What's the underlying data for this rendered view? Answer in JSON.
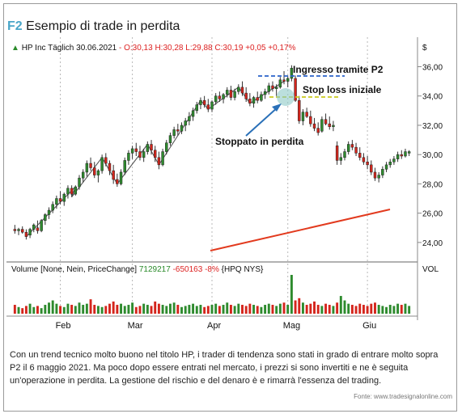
{
  "figure": {
    "label": "F2",
    "title": "Esempio di trade in perdita",
    "caption": "Con un trend tecnico molto buono nel titolo HP, i trader di tendenza sono stati in grado di entrare molto sopra P2 il 6 maggio 2021. Ma poco dopo essere entrati nel mercato, i prezzi si sono invertiti e ne è seguita un'operazione in perdita. La gestione del rischio e del denaro è e rimarrà l'essenza del trading.",
    "source": "Fonte: www.tradesignalonline.com"
  },
  "chart_data": {
    "type": "candlestick",
    "header": {
      "symbol": "HP Inc Täglich",
      "date": "30.06.2021",
      "ohlc": "- O:30,13 H:30,28 L:29,88 C:30,19 +0,05 +0,17%"
    },
    "price_axis": {
      "currency": "$",
      "ticks": [
        "36,00",
        "34,00",
        "32,00",
        "30,00",
        "28,00",
        "26,00",
        "24,00"
      ],
      "ylim": [
        23.0,
        36.8
      ]
    },
    "months": [
      "Feb",
      "Mar",
      "Apr",
      "Mag",
      "Giu"
    ],
    "annotations": {
      "entry": "Ingresso tramite P2",
      "entry_level": 35.0,
      "stop": "Stop loss iniziale",
      "stop_level": 33.6,
      "stopped": "Stoppato in perdita"
    },
    "candles": [
      [
        24.9,
        25.2,
        24.6,
        24.8
      ],
      [
        24.8,
        25.0,
        24.5,
        24.9
      ],
      [
        24.9,
        25.1,
        24.6,
        24.7
      ],
      [
        24.7,
        24.9,
        24.2,
        24.4
      ],
      [
        24.5,
        25.0,
        24.3,
        24.9
      ],
      [
        24.9,
        25.3,
        24.7,
        25.2
      ],
      [
        25.0,
        25.5,
        24.6,
        24.8
      ],
      [
        24.8,
        25.6,
        24.7,
        25.5
      ],
      [
        25.5,
        26.0,
        25.2,
        25.9
      ],
      [
        25.9,
        26.4,
        25.6,
        26.2
      ],
      [
        26.2,
        26.8,
        26.0,
        26.6
      ],
      [
        26.6,
        27.2,
        26.3,
        27.0
      ],
      [
        27.0,
        27.5,
        26.6,
        26.8
      ],
      [
        26.8,
        27.4,
        26.5,
        27.3
      ],
      [
        27.3,
        27.9,
        27.0,
        27.7
      ],
      [
        27.7,
        27.9,
        27.1,
        27.3
      ],
      [
        27.3,
        27.9,
        27.2,
        27.8
      ],
      [
        27.8,
        28.6,
        27.6,
        28.4
      ],
      [
        28.4,
        29.0,
        28.1,
        28.8
      ],
      [
        28.8,
        29.6,
        28.5,
        29.4
      ],
      [
        29.4,
        29.8,
        28.9,
        29.1
      ],
      [
        29.1,
        29.5,
        28.4,
        28.6
      ],
      [
        28.6,
        29.0,
        28.1,
        28.9
      ],
      [
        28.9,
        30.0,
        28.7,
        29.8
      ],
      [
        29.8,
        30.1,
        29.2,
        29.4
      ],
      [
        29.4,
        29.6,
        28.6,
        28.9
      ],
      [
        28.9,
        29.3,
        28.0,
        28.3
      ],
      [
        28.3,
        28.7,
        27.8,
        28.0
      ],
      [
        28.0,
        29.0,
        27.9,
        28.8
      ],
      [
        28.8,
        29.8,
        28.6,
        29.6
      ],
      [
        29.6,
        30.3,
        29.3,
        30.1
      ],
      [
        30.1,
        30.6,
        29.7,
        30.4
      ],
      [
        30.4,
        30.8,
        29.9,
        30.2
      ],
      [
        30.2,
        30.6,
        29.6,
        29.8
      ],
      [
        29.8,
        30.4,
        29.5,
        30.2
      ],
      [
        30.2,
        30.9,
        30.0,
        30.7
      ],
      [
        30.7,
        31.0,
        30.0,
        30.3
      ],
      [
        30.3,
        30.6,
        29.5,
        29.8
      ],
      [
        29.8,
        30.2,
        29.0,
        29.3
      ],
      [
        29.3,
        30.4,
        29.2,
        30.2
      ],
      [
        30.2,
        31.0,
        30.0,
        30.8
      ],
      [
        30.8,
        31.5,
        30.6,
        31.3
      ],
      [
        31.3,
        31.9,
        31.1,
        31.7
      ],
      [
        31.7,
        32.1,
        31.3,
        31.6
      ],
      [
        31.6,
        32.2,
        31.4,
        32.0
      ],
      [
        32.0,
        32.5,
        31.6,
        32.3
      ],
      [
        32.3,
        32.9,
        32.0,
        32.6
      ],
      [
        32.6,
        33.2,
        32.3,
        33.0
      ],
      [
        33.0,
        33.6,
        32.8,
        33.4
      ],
      [
        33.4,
        33.9,
        33.1,
        33.7
      ],
      [
        33.7,
        34.0,
        33.2,
        33.4
      ],
      [
        33.4,
        33.8,
        32.9,
        33.1
      ],
      [
        33.1,
        33.7,
        32.9,
        33.6
      ],
      [
        33.6,
        34.2,
        33.4,
        34.0
      ],
      [
        34.0,
        34.3,
        33.6,
        33.8
      ],
      [
        33.8,
        34.2,
        33.5,
        34.1
      ],
      [
        34.1,
        34.6,
        33.9,
        34.4
      ],
      [
        34.4,
        34.7,
        33.7,
        33.9
      ],
      [
        33.9,
        34.5,
        33.7,
        34.3
      ],
      [
        34.3,
        34.8,
        34.1,
        34.6
      ],
      [
        34.6,
        35.0,
        34.0,
        34.2
      ],
      [
        34.2,
        34.6,
        33.6,
        33.8
      ],
      [
        33.8,
        34.2,
        33.3,
        33.5
      ],
      [
        33.5,
        34.0,
        33.2,
        33.9
      ],
      [
        33.9,
        34.3,
        33.5,
        33.7
      ],
      [
        33.7,
        34.3,
        33.6,
        34.1
      ],
      [
        34.1,
        34.5,
        33.8,
        34.3
      ],
      [
        34.3,
        34.9,
        34.1,
        34.7
      ],
      [
        34.7,
        35.0,
        34.3,
        34.5
      ],
      [
        34.5,
        34.8,
        34.0,
        34.6
      ],
      [
        34.6,
        35.3,
        34.5,
        35.1
      ],
      [
        35.1,
        35.7,
        34.8,
        35.0
      ],
      [
        35.0,
        35.4,
        34.6,
        35.2
      ],
      [
        35.2,
        36.1,
        35.0,
        35.9
      ],
      [
        35.2,
        35.4,
        33.6,
        33.7
      ],
      [
        33.7,
        34.0,
        32.1,
        32.3
      ],
      [
        32.3,
        33.1,
        32.0,
        32.9
      ],
      [
        32.9,
        33.2,
        32.5,
        32.6
      ],
      [
        32.6,
        33.0,
        31.9,
        32.1
      ],
      [
        32.1,
        32.5,
        31.6,
        31.8
      ],
      [
        31.8,
        32.2,
        31.3,
        31.5
      ],
      [
        31.6,
        32.6,
        31.5,
        32.4
      ],
      [
        32.4,
        32.8,
        32.0,
        32.1
      ],
      [
        32.1,
        32.6,
        31.7,
        31.9
      ],
      [
        31.9,
        32.3,
        31.6,
        32.0
      ],
      [
        30.6,
        30.9,
        29.3,
        29.6
      ],
      [
        29.6,
        30.1,
        29.3,
        29.8
      ],
      [
        29.8,
        30.4,
        29.6,
        30.2
      ],
      [
        30.2,
        30.9,
        30.0,
        30.7
      ],
      [
        30.7,
        31.0,
        30.3,
        30.5
      ],
      [
        30.5,
        30.8,
        29.9,
        30.1
      ],
      [
        30.1,
        30.5,
        29.6,
        29.8
      ],
      [
        29.8,
        30.1,
        29.3,
        29.5
      ],
      [
        29.5,
        29.9,
        29.0,
        29.3
      ],
      [
        29.3,
        29.6,
        28.6,
        28.8
      ],
      [
        28.8,
        29.1,
        28.2,
        28.4
      ],
      [
        28.4,
        28.8,
        28.1,
        28.6
      ],
      [
        28.6,
        29.2,
        28.4,
        29.0
      ],
      [
        29.0,
        29.5,
        28.8,
        29.3
      ],
      [
        29.3,
        29.7,
        29.1,
        29.5
      ],
      [
        29.5,
        29.9,
        29.3,
        29.7
      ],
      [
        29.7,
        30.2,
        29.5,
        30.0
      ],
      [
        30.0,
        30.3,
        29.7,
        29.9
      ],
      [
        29.9,
        30.4,
        29.8,
        30.2
      ],
      [
        30.1,
        30.3,
        29.9,
        30.2
      ]
    ],
    "volume": {
      "label": "Volume [None, Nein, PriceChange]",
      "value": "7129217",
      "change": "-650163",
      "change_pct": "-8%",
      "symbol": "{HPQ NYS}",
      "axis_label": "VOL",
      "values": [
        8,
        6,
        5,
        7,
        9,
        6,
        7,
        5,
        8,
        10,
        12,
        9,
        7,
        6,
        9,
        8,
        7,
        10,
        8,
        9,
        13,
        8,
        7,
        6,
        7,
        9,
        11,
        8,
        9,
        7,
        8,
        10,
        6,
        7,
        9,
        8,
        7,
        11,
        9,
        8,
        7,
        9,
        10,
        8,
        6,
        7,
        8,
        9,
        7,
        8,
        6,
        7,
        8,
        9,
        7,
        8,
        10,
        8,
        7,
        9,
        8,
        7,
        9,
        8,
        7,
        6,
        8,
        9,
        8,
        7,
        9,
        10,
        8,
        35,
        12,
        14,
        10,
        8,
        9,
        11,
        8,
        7,
        9,
        8,
        7,
        10,
        16,
        12,
        9,
        8,
        7,
        9,
        8,
        7,
        9,
        10,
        8,
        7,
        6,
        8,
        7,
        9,
        8,
        9,
        7
      ]
    }
  }
}
